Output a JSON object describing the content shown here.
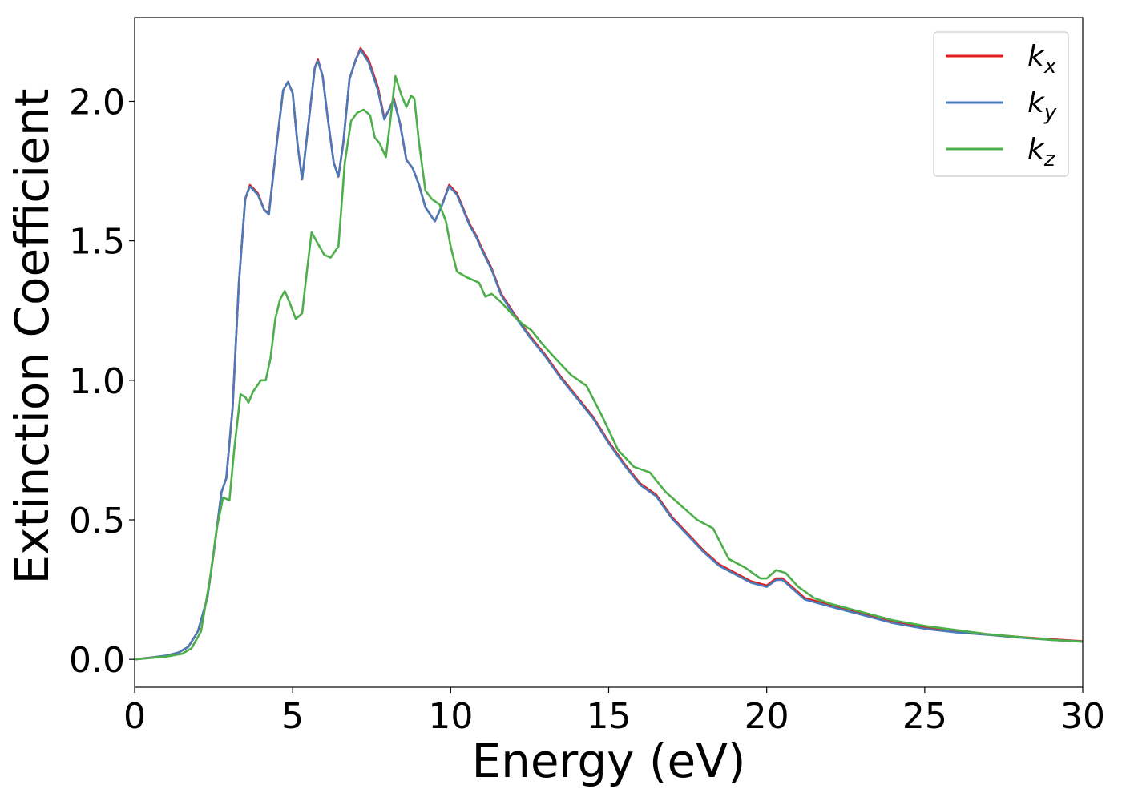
{
  "chart_data": {
    "type": "line",
    "title": "",
    "xlabel": "Energy (eV)",
    "ylabel": "Extinction Coefficient",
    "xlim": [
      0,
      30
    ],
    "ylim": [
      -0.1,
      2.3
    ],
    "xticks": [
      0,
      5,
      10,
      15,
      20,
      25,
      30
    ],
    "xtick_labels": [
      "0",
      "5",
      "10",
      "15",
      "20",
      "25",
      "30"
    ],
    "yticks": [
      0.0,
      0.5,
      1.0,
      1.5,
      2.0
    ],
    "ytick_labels": [
      "0.0",
      "0.5",
      "1.0",
      "1.5",
      "2.0"
    ],
    "grid": false,
    "legend_position": "top-right",
    "series": [
      {
        "name": "k",
        "subscript": "x",
        "color": "#e41a1c",
        "points": [
          [
            0,
            0.0
          ],
          [
            0.5,
            0.006
          ],
          [
            1.0,
            0.013
          ],
          [
            1.4,
            0.025
          ],
          [
            1.7,
            0.045
          ],
          [
            2.0,
            0.1
          ],
          [
            2.3,
            0.22
          ],
          [
            2.5,
            0.38
          ],
          [
            2.75,
            0.6
          ],
          [
            2.9,
            0.65
          ],
          [
            3.1,
            0.9
          ],
          [
            3.3,
            1.35
          ],
          [
            3.5,
            1.65
          ],
          [
            3.65,
            1.7
          ],
          [
            3.9,
            1.67
          ],
          [
            4.1,
            1.61
          ],
          [
            4.25,
            1.6
          ],
          [
            4.5,
            1.85
          ],
          [
            4.7,
            2.04
          ],
          [
            4.85,
            2.07
          ],
          [
            5.0,
            2.03
          ],
          [
            5.15,
            1.85
          ],
          [
            5.3,
            1.72
          ],
          [
            5.5,
            1.92
          ],
          [
            5.7,
            2.12
          ],
          [
            5.8,
            2.15
          ],
          [
            5.95,
            2.09
          ],
          [
            6.1,
            1.95
          ],
          [
            6.3,
            1.78
          ],
          [
            6.45,
            1.73
          ],
          [
            6.6,
            1.85
          ],
          [
            6.8,
            2.08
          ],
          [
            7.0,
            2.15
          ],
          [
            7.15,
            2.19
          ],
          [
            7.4,
            2.15
          ],
          [
            7.7,
            2.05
          ],
          [
            7.9,
            1.94
          ],
          [
            8.05,
            1.97
          ],
          [
            8.2,
            2.01
          ],
          [
            8.4,
            1.92
          ],
          [
            8.6,
            1.79
          ],
          [
            8.8,
            1.76
          ],
          [
            9.0,
            1.7
          ],
          [
            9.2,
            1.62
          ],
          [
            9.5,
            1.57
          ],
          [
            9.7,
            1.62
          ],
          [
            9.95,
            1.7
          ],
          [
            10.2,
            1.67
          ],
          [
            10.6,
            1.56
          ],
          [
            10.8,
            1.52
          ],
          [
            11.0,
            1.47
          ],
          [
            11.3,
            1.4
          ],
          [
            11.6,
            1.31
          ],
          [
            12.0,
            1.24
          ],
          [
            12.5,
            1.16
          ],
          [
            13.0,
            1.09
          ],
          [
            13.5,
            1.01
          ],
          [
            14.0,
            0.94
          ],
          [
            14.5,
            0.87
          ],
          [
            15.0,
            0.78
          ],
          [
            15.5,
            0.7
          ],
          [
            16.0,
            0.63
          ],
          [
            16.5,
            0.59
          ],
          [
            17.0,
            0.51
          ],
          [
            17.5,
            0.45
          ],
          [
            18.0,
            0.39
          ],
          [
            18.5,
            0.34
          ],
          [
            19.0,
            0.31
          ],
          [
            19.5,
            0.28
          ],
          [
            20.0,
            0.265
          ],
          [
            20.3,
            0.29
          ],
          [
            20.5,
            0.29
          ],
          [
            20.8,
            0.26
          ],
          [
            21.2,
            0.22
          ],
          [
            22.0,
            0.195
          ],
          [
            22.5,
            0.18
          ],
          [
            23.0,
            0.165
          ],
          [
            24.0,
            0.135
          ],
          [
            25.0,
            0.115
          ],
          [
            26.0,
            0.1
          ],
          [
            27.0,
            0.09
          ],
          [
            28.0,
            0.08
          ],
          [
            29.0,
            0.072
          ],
          [
            30.0,
            0.065
          ]
        ]
      },
      {
        "name": "k",
        "subscript": "y",
        "color": "#4a7ab8",
        "points": [
          [
            0,
            0.0
          ],
          [
            0.5,
            0.006
          ],
          [
            1.0,
            0.013
          ],
          [
            1.4,
            0.025
          ],
          [
            1.7,
            0.045
          ],
          [
            2.0,
            0.1
          ],
          [
            2.3,
            0.22
          ],
          [
            2.5,
            0.38
          ],
          [
            2.75,
            0.6
          ],
          [
            2.9,
            0.65
          ],
          [
            3.1,
            0.9
          ],
          [
            3.3,
            1.35
          ],
          [
            3.5,
            1.65
          ],
          [
            3.65,
            1.695
          ],
          [
            3.9,
            1.665
          ],
          [
            4.1,
            1.61
          ],
          [
            4.25,
            1.595
          ],
          [
            4.5,
            1.85
          ],
          [
            4.7,
            2.04
          ],
          [
            4.85,
            2.07
          ],
          [
            5.0,
            2.03
          ],
          [
            5.15,
            1.85
          ],
          [
            5.3,
            1.72
          ],
          [
            5.5,
            1.92
          ],
          [
            5.7,
            2.12
          ],
          [
            5.8,
            2.145
          ],
          [
            5.95,
            2.09
          ],
          [
            6.1,
            1.95
          ],
          [
            6.3,
            1.78
          ],
          [
            6.45,
            1.73
          ],
          [
            6.6,
            1.85
          ],
          [
            6.8,
            2.08
          ],
          [
            7.0,
            2.15
          ],
          [
            7.15,
            2.185
          ],
          [
            7.4,
            2.14
          ],
          [
            7.7,
            2.04
          ],
          [
            7.9,
            1.935
          ],
          [
            8.05,
            1.97
          ],
          [
            8.2,
            2.005
          ],
          [
            8.4,
            1.92
          ],
          [
            8.6,
            1.79
          ],
          [
            8.8,
            1.76
          ],
          [
            9.0,
            1.7
          ],
          [
            9.2,
            1.62
          ],
          [
            9.5,
            1.57
          ],
          [
            9.7,
            1.62
          ],
          [
            9.95,
            1.695
          ],
          [
            10.2,
            1.665
          ],
          [
            10.6,
            1.555
          ],
          [
            10.8,
            1.515
          ],
          [
            11.0,
            1.465
          ],
          [
            11.3,
            1.395
          ],
          [
            11.6,
            1.305
          ],
          [
            12.0,
            1.235
          ],
          [
            12.5,
            1.155
          ],
          [
            13.0,
            1.085
          ],
          [
            13.5,
            1.005
          ],
          [
            14.0,
            0.935
          ],
          [
            14.5,
            0.865
          ],
          [
            15.0,
            0.775
          ],
          [
            15.5,
            0.695
          ],
          [
            16.0,
            0.625
          ],
          [
            16.5,
            0.585
          ],
          [
            17.0,
            0.505
          ],
          [
            17.5,
            0.445
          ],
          [
            18.0,
            0.385
          ],
          [
            18.5,
            0.335
          ],
          [
            19.0,
            0.305
          ],
          [
            19.5,
            0.275
          ],
          [
            20.0,
            0.26
          ],
          [
            20.3,
            0.285
          ],
          [
            20.5,
            0.285
          ],
          [
            20.8,
            0.255
          ],
          [
            21.2,
            0.215
          ],
          [
            22.0,
            0.19
          ],
          [
            22.5,
            0.175
          ],
          [
            23.0,
            0.16
          ],
          [
            24.0,
            0.13
          ],
          [
            25.0,
            0.11
          ],
          [
            26.0,
            0.097
          ],
          [
            27.0,
            0.088
          ],
          [
            28.0,
            0.078
          ],
          [
            29.0,
            0.07
          ],
          [
            30.0,
            0.064
          ]
        ]
      },
      {
        "name": "k",
        "subscript": "z",
        "color": "#4daf4a",
        "points": [
          [
            0,
            0.0
          ],
          [
            0.5,
            0.005
          ],
          [
            1.0,
            0.01
          ],
          [
            1.5,
            0.02
          ],
          [
            1.8,
            0.04
          ],
          [
            2.1,
            0.1
          ],
          [
            2.4,
            0.3
          ],
          [
            2.6,
            0.47
          ],
          [
            2.8,
            0.58
          ],
          [
            3.0,
            0.57
          ],
          [
            3.15,
            0.75
          ],
          [
            3.35,
            0.95
          ],
          [
            3.5,
            0.94
          ],
          [
            3.6,
            0.92
          ],
          [
            3.75,
            0.96
          ],
          [
            4.0,
            1.0
          ],
          [
            4.15,
            1.0
          ],
          [
            4.3,
            1.08
          ],
          [
            4.45,
            1.22
          ],
          [
            4.6,
            1.29
          ],
          [
            4.75,
            1.32
          ],
          [
            4.9,
            1.28
          ],
          [
            5.1,
            1.22
          ],
          [
            5.3,
            1.24
          ],
          [
            5.45,
            1.39
          ],
          [
            5.6,
            1.53
          ],
          [
            5.75,
            1.5
          ],
          [
            6.0,
            1.45
          ],
          [
            6.2,
            1.44
          ],
          [
            6.45,
            1.48
          ],
          [
            6.65,
            1.78
          ],
          [
            6.85,
            1.93
          ],
          [
            7.05,
            1.96
          ],
          [
            7.25,
            1.97
          ],
          [
            7.45,
            1.95
          ],
          [
            7.6,
            1.87
          ],
          [
            7.75,
            1.85
          ],
          [
            7.95,
            1.8
          ],
          [
            8.1,
            1.94
          ],
          [
            8.25,
            2.09
          ],
          [
            8.45,
            2.02
          ],
          [
            8.6,
            1.98
          ],
          [
            8.75,
            2.02
          ],
          [
            8.85,
            2.01
          ],
          [
            9.0,
            1.85
          ],
          [
            9.2,
            1.68
          ],
          [
            9.4,
            1.65
          ],
          [
            9.65,
            1.63
          ],
          [
            9.85,
            1.57
          ],
          [
            10.0,
            1.48
          ],
          [
            10.2,
            1.39
          ],
          [
            10.5,
            1.37
          ],
          [
            10.9,
            1.35
          ],
          [
            11.1,
            1.3
          ],
          [
            11.3,
            1.31
          ],
          [
            11.6,
            1.28
          ],
          [
            12.0,
            1.23
          ],
          [
            12.3,
            1.2
          ],
          [
            12.55,
            1.18
          ],
          [
            12.9,
            1.13
          ],
          [
            13.3,
            1.08
          ],
          [
            13.8,
            1.02
          ],
          [
            14.3,
            0.98
          ],
          [
            14.8,
            0.87
          ],
          [
            15.3,
            0.75
          ],
          [
            15.8,
            0.69
          ],
          [
            16.3,
            0.67
          ],
          [
            16.8,
            0.6
          ],
          [
            17.3,
            0.55
          ],
          [
            17.8,
            0.5
          ],
          [
            18.3,
            0.47
          ],
          [
            18.8,
            0.36
          ],
          [
            19.3,
            0.33
          ],
          [
            19.8,
            0.29
          ],
          [
            20.0,
            0.29
          ],
          [
            20.3,
            0.32
          ],
          [
            20.6,
            0.31
          ],
          [
            21.0,
            0.26
          ],
          [
            21.5,
            0.22
          ],
          [
            22.0,
            0.2
          ],
          [
            23.0,
            0.17
          ],
          [
            24.0,
            0.14
          ],
          [
            25.0,
            0.12
          ],
          [
            26.0,
            0.105
          ],
          [
            27.0,
            0.09
          ],
          [
            28.0,
            0.08
          ],
          [
            29.0,
            0.07
          ],
          [
            30.0,
            0.063
          ]
        ]
      }
    ]
  }
}
